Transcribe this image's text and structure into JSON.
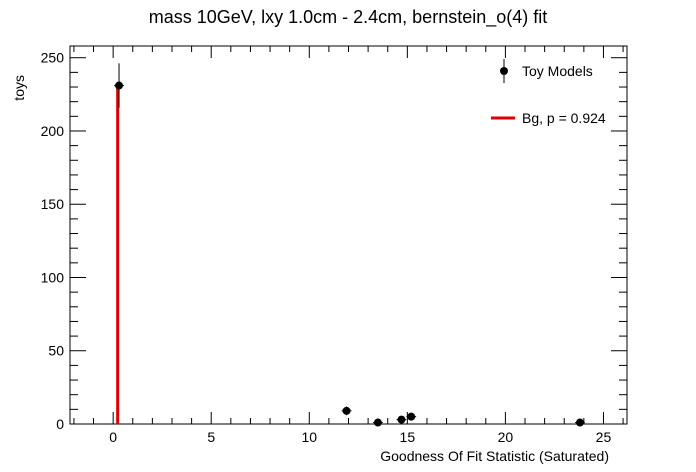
{
  "chart_data": {
    "type": "scatter",
    "title": "mass 10GeV, lxy 1.0cm - 2.4cm, bernstein_o(4) fit",
    "xlabel": "Goodness Of Fit Statistic (Saturated)",
    "ylabel": "toys",
    "xlim": [
      -2.2,
      26.2
    ],
    "ylim": [
      0,
      258
    ],
    "xticks": [
      0,
      5,
      10,
      15,
      20,
      25
    ],
    "yticks": [
      0,
      50,
      100,
      150,
      200,
      250
    ],
    "grid": false,
    "legend_position": "top-right",
    "series": [
      {
        "name": "Toy Models",
        "kind": "points-with-errors",
        "color": "#000000",
        "points": [
          {
            "x": 0.3,
            "y": 231,
            "yerr": 15.2,
            "xerr": 0.25
          },
          {
            "x": 11.9,
            "y": 9,
            "yerr": 3.0,
            "xerr": 0.25
          },
          {
            "x": 13.5,
            "y": 1,
            "yerr": 1.0,
            "xerr": 0.25
          },
          {
            "x": 14.7,
            "y": 3,
            "yerr": 1.7,
            "xerr": 0.25
          },
          {
            "x": 15.2,
            "y": 5,
            "yerr": 2.2,
            "xerr": 0.25
          },
          {
            "x": 23.8,
            "y": 1,
            "yerr": 1.0,
            "xerr": 0.25
          }
        ]
      },
      {
        "name": "Bg, p = 0.924",
        "kind": "vertical-line",
        "color": "#e00000",
        "x": 0.23,
        "y": 231
      }
    ]
  }
}
